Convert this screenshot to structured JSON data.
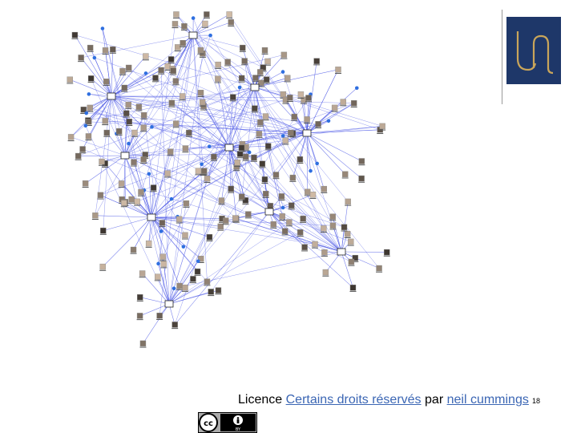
{
  "slide": {
    "number": "18"
  },
  "logo": {
    "mark": "Un",
    "background": "#1e3769",
    "foreground": "#c9a55a",
    "icon": "university-logo"
  },
  "licence": {
    "prefix": "Licence",
    "link_rights": "Certains droits réservés",
    "middle": "par",
    "link_author": "neil cummings"
  },
  "cc_badge": {
    "icon": "creative-commons-by-icon",
    "cc": "cc",
    "by": "BY"
  },
  "network": {
    "icon": "social-network-graph",
    "edge_color": "#4a55e6"
  }
}
